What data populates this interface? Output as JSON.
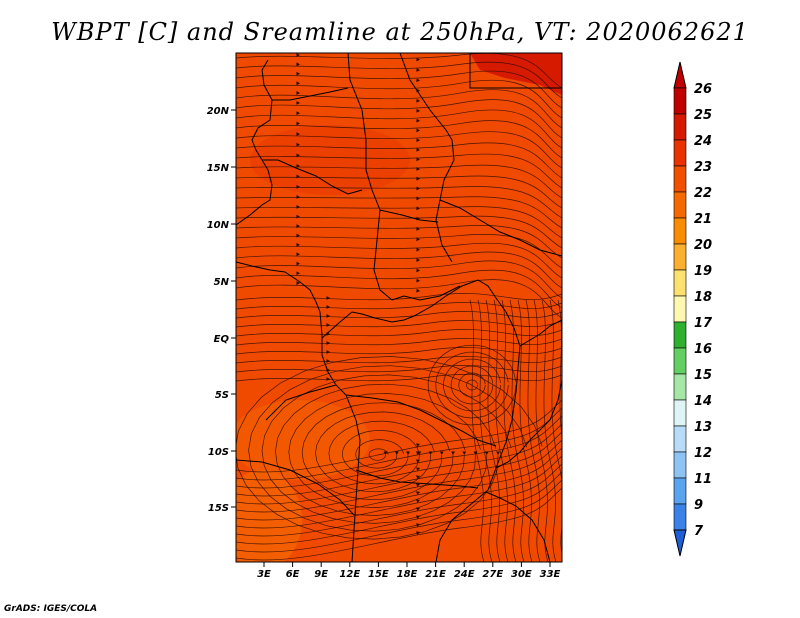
{
  "title": "WBPT [C] and Sreamline at 250hPa, VT: 2020062621",
  "credit": "GrADS: IGES/COLA",
  "map": {
    "lat_labels": [
      "20N",
      "15N",
      "10N",
      "5N",
      "EQ",
      "5S",
      "10S",
      "15S"
    ],
    "lon_labels": [
      "3E",
      "6E",
      "9E",
      "12E",
      "15E",
      "18E",
      "21E",
      "24E",
      "27E",
      "30E",
      "33E"
    ],
    "field_color": "#f04a00",
    "streamline_color": "#2a0a00"
  },
  "colorbar": {
    "labels": [
      "26",
      "25",
      "24",
      "23",
      "22",
      "21",
      "20",
      "19",
      "18",
      "17",
      "16",
      "15",
      "14",
      "13",
      "12",
      "11",
      "9",
      "7"
    ],
    "colors": [
      "#c00000",
      "#d51a00",
      "#e83200",
      "#f05000",
      "#f56a00",
      "#f98c00",
      "#fbb030",
      "#fce070",
      "#fff8b0",
      "#2fb02f",
      "#63cf63",
      "#a6e6a6",
      "#dff5f5",
      "#b8dcf8",
      "#8ec4f4",
      "#5aa3ee",
      "#3b82e6",
      "#1e5fd8"
    ]
  }
}
